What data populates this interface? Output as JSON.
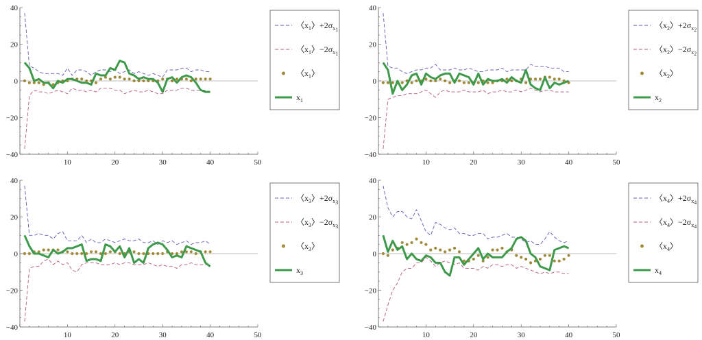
{
  "chart_data": [
    {
      "type": "line",
      "title": "",
      "xlabel": "",
      "ylabel": "",
      "xlim": [
        0,
        50
      ],
      "ylim": [
        -40,
        40
      ],
      "xticks": [
        0,
        10,
        20,
        30,
        40,
        50
      ],
      "xtick_labels": [
        "",
        "10",
        "20",
        "30",
        "40",
        "50"
      ],
      "yticks": [
        -40,
        -20,
        0,
        20,
        40
      ],
      "ytick_labels": [
        "−40",
        "−20",
        "0",
        "20",
        "40"
      ],
      "legend_position": "right",
      "x": [
        1,
        2,
        3,
        4,
        5,
        6,
        7,
        8,
        9,
        10,
        11,
        12,
        13,
        14,
        15,
        16,
        17,
        18,
        19,
        20,
        21,
        22,
        23,
        24,
        25,
        26,
        27,
        28,
        29,
        30,
        31,
        32,
        33,
        34,
        35,
        36,
        37,
        38,
        39,
        40
      ],
      "series": [
        {
          "name": "upper",
          "style": "dashed",
          "color": "#5b5bb5",
          "legend": {
            "pre": "〈x",
            "sub": "1",
            "mid": "〉+2σ",
            "sub2": "x",
            "sub3": "1"
          },
          "values": [
            37,
            8,
            7,
            5,
            4,
            4,
            4,
            4,
            3,
            7,
            3,
            6,
            6,
            5,
            3,
            5,
            6,
            6,
            5,
            6,
            4,
            5,
            6,
            4,
            5,
            4,
            3,
            4,
            3,
            2,
            6,
            6,
            6,
            7,
            7,
            5,
            6,
            6,
            5,
            5
          ]
        },
        {
          "name": "lower",
          "style": "dashed",
          "color": "#b5587a",
          "legend": {
            "pre": "〈x",
            "sub": "1",
            "mid": "〉−2σ",
            "sub2": "x",
            "sub3": "1"
          },
          "values": [
            -37,
            -8,
            -5,
            -6,
            -6,
            -7,
            -6,
            -5,
            -6,
            -7,
            -4,
            -5,
            -5,
            -6,
            -5,
            -6,
            -4,
            -4,
            -4,
            -5,
            -5,
            -7,
            -6,
            -5,
            -6,
            -6,
            -5,
            -6,
            -7,
            -7,
            -5,
            -5,
            -5,
            -4,
            -4,
            -5,
            -5,
            -5,
            -5,
            -6
          ]
        },
        {
          "name": "mean",
          "style": "dots",
          "color": "#a08a38",
          "legend": {
            "pre": "〈x",
            "sub": "1",
            "mid": "〉"
          },
          "values": [
            0,
            -1,
            -1,
            -1,
            -2,
            -1,
            -2,
            -1,
            0,
            0,
            1,
            1,
            1,
            0,
            0,
            -1,
            1,
            2,
            1,
            2,
            2,
            1,
            1,
            0,
            0,
            0,
            0,
            0,
            0,
            1,
            1,
            0,
            1,
            1,
            1,
            0,
            1,
            1,
            1,
            1
          ]
        },
        {
          "name": "actual",
          "style": "solid",
          "color": "#3d9a4a",
          "legend": {
            "pre": "x",
            "sub": "1",
            "mid": ""
          },
          "values": [
            10,
            7,
            0,
            1,
            -1,
            -1,
            -4,
            0,
            -1,
            1,
            1,
            0,
            -1,
            -1,
            -2,
            4,
            3,
            3,
            7,
            6,
            11,
            10,
            4,
            3,
            1,
            2,
            1,
            1,
            -1,
            -6,
            1,
            2,
            -1,
            2,
            3,
            2,
            -1,
            -5,
            -6,
            -6
          ]
        }
      ]
    },
    {
      "type": "line",
      "title": "",
      "xlabel": "",
      "ylabel": "",
      "xlim": [
        0,
        50
      ],
      "ylim": [
        -40,
        40
      ],
      "xticks": [
        0,
        10,
        20,
        30,
        40,
        50
      ],
      "xtick_labels": [
        "",
        "10",
        "20",
        "30",
        "40",
        "50"
      ],
      "yticks": [
        -40,
        -20,
        0,
        20,
        40
      ],
      "ytick_labels": [
        "−40",
        "−20",
        "0",
        "20",
        "40"
      ],
      "legend_position": "right",
      "x": [
        1,
        2,
        3,
        4,
        5,
        6,
        7,
        8,
        9,
        10,
        11,
        12,
        13,
        14,
        15,
        16,
        17,
        18,
        19,
        20,
        21,
        22,
        23,
        24,
        25,
        26,
        27,
        28,
        29,
        30,
        31,
        32,
        33,
        34,
        35,
        36,
        37,
        38,
        39,
        40
      ],
      "series": [
        {
          "name": "upper",
          "style": "dashed",
          "color": "#5b5bb5",
          "legend": {
            "pre": "〈x",
            "sub": "2",
            "mid": "〉+2σ",
            "sub2": "x",
            "sub3": "2"
          },
          "values": [
            37,
            8,
            7,
            7,
            5,
            4,
            5,
            6,
            6,
            7,
            7,
            9,
            6,
            6,
            6,
            7,
            6,
            6,
            7,
            6,
            5,
            5,
            6,
            6,
            6,
            7,
            5,
            6,
            6,
            6,
            6,
            9,
            8,
            8,
            8,
            7,
            7,
            7,
            5,
            5
          ]
        },
        {
          "name": "lower",
          "style": "dashed",
          "color": "#b5587a",
          "legend": {
            "pre": "〈x",
            "sub": "2",
            "mid": "〉−2σ",
            "sub2": "x",
            "sub3": "2"
          },
          "values": [
            -37,
            -10,
            -9,
            -8,
            -8,
            -7,
            -7,
            -7,
            -6,
            -5,
            -7,
            -9,
            -6,
            -5,
            -6,
            -6,
            -6,
            -5,
            -6,
            -6,
            -6,
            -5,
            -7,
            -6,
            -6,
            -5,
            -6,
            -6,
            -5,
            -6,
            -5,
            -4,
            -5,
            -6,
            -5,
            -5,
            -6,
            -6,
            -6,
            -6
          ]
        },
        {
          "name": "mean",
          "style": "dots",
          "color": "#a08a38",
          "legend": {
            "pre": "〈x",
            "sub": "2",
            "mid": "〉"
          },
          "values": [
            -1,
            -1,
            -1,
            -1,
            -1,
            0,
            -1,
            0,
            0,
            1,
            0,
            0,
            1,
            0,
            -1,
            0,
            0,
            -1,
            -1,
            -1,
            -1,
            0,
            -1,
            -1,
            0,
            0,
            1,
            0,
            0,
            1,
            -1,
            1,
            1,
            1,
            2,
            2,
            1,
            1,
            0,
            -1
          ]
        },
        {
          "name": "actual",
          "style": "solid",
          "color": "#3d9a4a",
          "legend": {
            "pre": "x",
            "sub": "2",
            "mid": ""
          },
          "values": [
            10,
            6,
            -7,
            0,
            -5,
            -2,
            3,
            4,
            -2,
            4,
            2,
            1,
            3,
            4,
            4,
            -1,
            4,
            3,
            2,
            -2,
            4,
            -2,
            1,
            0,
            0,
            1,
            -1,
            2,
            0,
            -1,
            6,
            -2,
            -4,
            -5,
            2,
            -4,
            -1,
            -2,
            -1,
            0
          ]
        }
      ]
    },
    {
      "type": "line",
      "title": "",
      "xlabel": "",
      "ylabel": "",
      "xlim": [
        0,
        50
      ],
      "ylim": [
        -40,
        40
      ],
      "xticks": [
        0,
        10,
        20,
        30,
        40,
        50
      ],
      "xtick_labels": [
        "",
        "10",
        "20",
        "30",
        "40",
        "50"
      ],
      "yticks": [
        -40,
        -20,
        0,
        20,
        40
      ],
      "ytick_labels": [
        "−40",
        "−20",
        "0",
        "20",
        "40"
      ],
      "legend_position": "right",
      "x": [
        1,
        2,
        3,
        4,
        5,
        6,
        7,
        8,
        9,
        10,
        11,
        12,
        13,
        14,
        15,
        16,
        17,
        18,
        19,
        20,
        21,
        22,
        23,
        24,
        25,
        26,
        27,
        28,
        29,
        30,
        31,
        32,
        33,
        34,
        35,
        36,
        37,
        38,
        39,
        40
      ],
      "series": [
        {
          "name": "upper",
          "style": "dashed",
          "color": "#5b5bb5",
          "legend": {
            "pre": "〈x",
            "sub": "3",
            "mid": "〉+2σ",
            "sub2": "x",
            "sub3": "3"
          },
          "values": [
            37,
            10,
            10,
            11,
            10,
            10,
            8,
            11,
            12,
            7,
            7,
            7,
            10,
            6,
            8,
            6,
            6,
            8,
            7,
            6,
            7,
            8,
            7,
            7,
            8,
            6,
            6,
            7,
            5,
            7,
            6,
            7,
            5,
            6,
            7,
            5,
            6,
            6,
            7,
            5
          ]
        },
        {
          "name": "lower",
          "style": "dashed",
          "color": "#b5587a",
          "legend": {
            "pre": "〈x",
            "sub": "3",
            "mid": "〉−2σ",
            "sub2": "x",
            "sub3": "3"
          },
          "values": [
            -37,
            -8,
            -7,
            -7,
            -4,
            -3,
            -6,
            -4,
            -6,
            -5,
            -9,
            -10,
            -6,
            -5,
            -5,
            -5,
            -6,
            -6,
            -6,
            -5,
            -6,
            -5,
            -5,
            -6,
            -6,
            -6,
            -5,
            -6,
            -7,
            -6,
            -7,
            -7,
            -8,
            -6,
            -6,
            -5,
            -6,
            -6,
            -6,
            -6
          ]
        },
        {
          "name": "mean",
          "style": "dots",
          "color": "#a08a38",
          "legend": {
            "pre": "〈x",
            "sub": "3",
            "mid": "〉"
          },
          "values": [
            0,
            0,
            1,
            1,
            2,
            2,
            2,
            2,
            1,
            1,
            0,
            0,
            0,
            0,
            1,
            1,
            0,
            0,
            1,
            1,
            0,
            0,
            1,
            1,
            0,
            0,
            0,
            0,
            0,
            0,
            1,
            0,
            0,
            1,
            1,
            1,
            0,
            1,
            1,
            1
          ]
        },
        {
          "name": "actual",
          "style": "solid",
          "color": "#3d9a4a",
          "legend": {
            "pre": "x",
            "sub": "3",
            "mid": ""
          },
          "values": [
            10,
            4,
            0,
            0,
            -1,
            -2,
            2,
            0,
            1,
            3,
            3,
            4,
            5,
            -4,
            -3,
            -3,
            -4,
            5,
            4,
            1,
            4,
            -2,
            3,
            -5,
            -3,
            -5,
            3,
            5,
            6,
            5,
            2,
            -2,
            -1,
            -2,
            4,
            3,
            2,
            1,
            -5,
            -7
          ]
        }
      ]
    },
    {
      "type": "line",
      "title": "",
      "xlabel": "",
      "ylabel": "",
      "xlim": [
        0,
        50
      ],
      "ylim": [
        -40,
        40
      ],
      "xticks": [
        0,
        10,
        20,
        30,
        40,
        50
      ],
      "xtick_labels": [
        "",
        "10",
        "20",
        "30",
        "40",
        "50"
      ],
      "yticks": [
        -40,
        -20,
        0,
        20,
        40
      ],
      "ytick_labels": [
        "−40",
        "−20",
        "0",
        "20",
        "40"
      ],
      "legend_position": "right",
      "x": [
        1,
        2,
        3,
        4,
        5,
        6,
        7,
        8,
        9,
        10,
        11,
        12,
        13,
        14,
        15,
        16,
        17,
        18,
        19,
        20,
        21,
        22,
        23,
        24,
        25,
        26,
        27,
        28,
        29,
        30,
        31,
        32,
        33,
        34,
        35,
        36,
        37,
        38,
        39,
        40
      ],
      "series": [
        {
          "name": "upper",
          "style": "dashed",
          "color": "#5b5bb5",
          "legend": {
            "pre": "〈x",
            "sub": "4",
            "mid": "〉+2σ",
            "sub2": "x",
            "sub3": "4"
          },
          "values": [
            37,
            25,
            20,
            23,
            23,
            20,
            19,
            24,
            18,
            12,
            10,
            17,
            16,
            14,
            13,
            14,
            11,
            11,
            10,
            10,
            11,
            11,
            8,
            9,
            9,
            10,
            11,
            9,
            9,
            8,
            6,
            7,
            5,
            5,
            8,
            12,
            9,
            7,
            6,
            7
          ]
        },
        {
          "name": "lower",
          "style": "dashed",
          "color": "#b5587a",
          "legend": {
            "pre": "〈x",
            "sub": "4",
            "mid": "〉−2σ",
            "sub2": "x",
            "sub3": "4"
          },
          "values": [
            -37,
            -28,
            -20,
            -16,
            -10,
            -8,
            -8,
            -5,
            -5,
            -2,
            -4,
            -7,
            -5,
            -4,
            -5,
            -6,
            -5,
            -8,
            -8,
            -8,
            -9,
            -7,
            -8,
            -6,
            -6,
            -7,
            -6,
            -6,
            -8,
            -7,
            -8,
            -9,
            -10,
            -11,
            -10,
            -11,
            -10,
            -10,
            -11,
            -11
          ]
        },
        {
          "name": "mean",
          "style": "dots",
          "color": "#a08a38",
          "legend": {
            "pre": "〈x",
            "sub": "4",
            "mid": "〉"
          },
          "values": [
            0,
            -1,
            2,
            3,
            6,
            5,
            6,
            8,
            6,
            5,
            2,
            3,
            2,
            1,
            2,
            3,
            1,
            -4,
            -4,
            -3,
            -1,
            -4,
            -2,
            2,
            2,
            3,
            1,
            2,
            -1,
            -2,
            -3,
            -5,
            -4,
            -3,
            -1,
            -1,
            -4,
            -4,
            -3,
            -1
          ]
        },
        {
          "name": "actual",
          "style": "solid",
          "color": "#3d9a4a",
          "legend": {
            "pre": "x",
            "sub": "4",
            "mid": ""
          },
          "values": [
            10,
            1,
            7,
            2,
            4,
            -3,
            0,
            -3,
            -4,
            -1,
            -2,
            -5,
            -5,
            -10,
            -12,
            -2,
            -2,
            -6,
            -3,
            0,
            3,
            -3,
            0,
            -2,
            -2,
            -2,
            1,
            3,
            8,
            9,
            7,
            0,
            -2,
            -7,
            -8,
            -9,
            2,
            3,
            4,
            3
          ]
        }
      ]
    }
  ]
}
